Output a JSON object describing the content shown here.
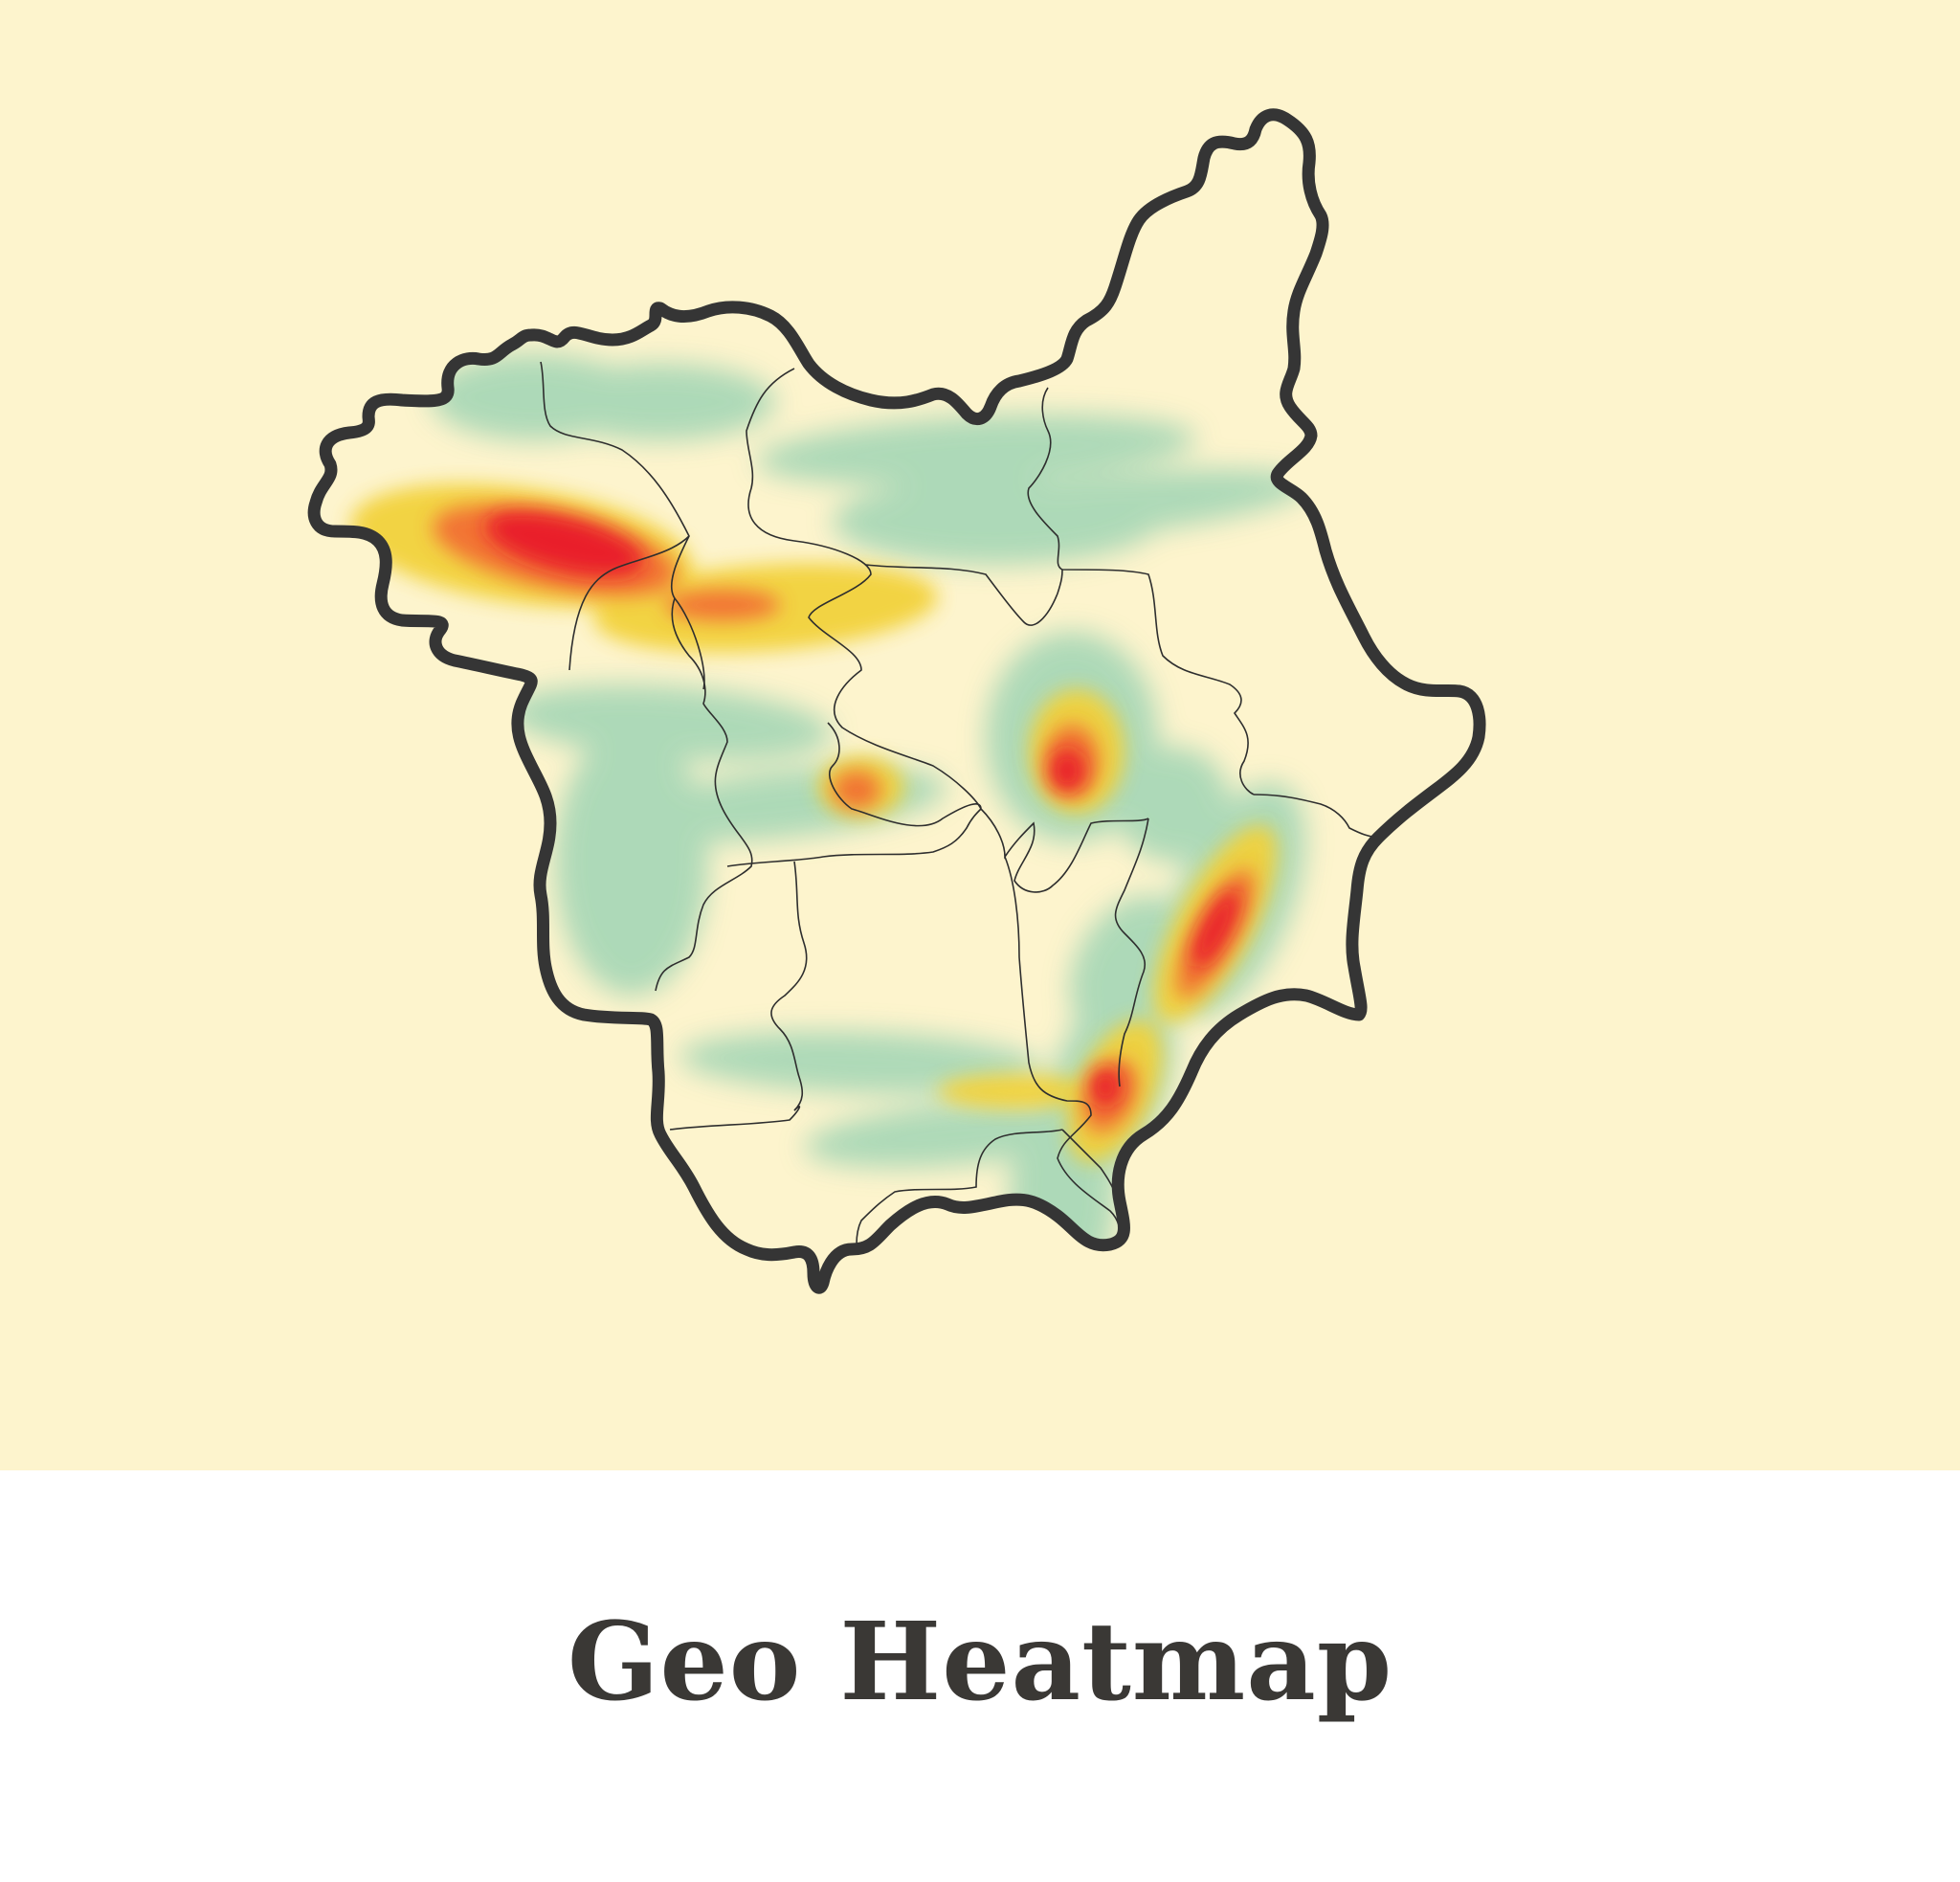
{
  "caption": {
    "title": "Geo Heatmap"
  },
  "colors": {
    "background": "#fdf4cd",
    "outline": "#353535",
    "low": "#9fd4b4",
    "mid": "#f2d13a",
    "high": "#f26430",
    "peak": "#e8182a"
  },
  "map": {
    "regions_count_visible": 15,
    "legend": "none"
  }
}
